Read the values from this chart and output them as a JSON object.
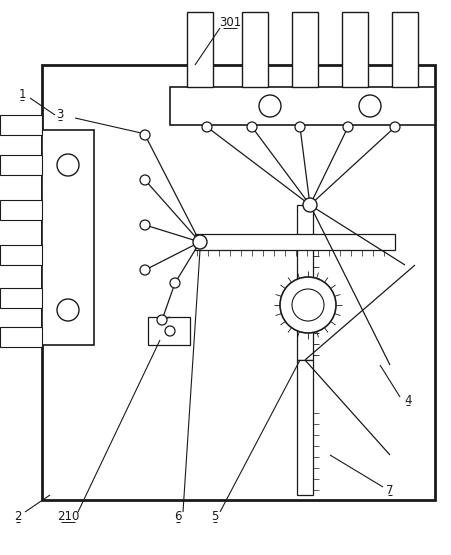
{
  "bg_color": "#ffffff",
  "line_color": "#1a1a1a",
  "lw": 1.3,
  "fig_width": 4.52,
  "fig_height": 5.55,
  "dpi": 100
}
